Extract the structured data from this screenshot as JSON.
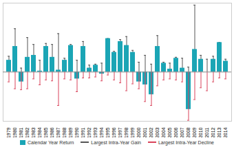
{
  "chart_data": {
    "type": "bar",
    "categories": [
      "1979",
      "1980",
      "1981",
      "1982",
      "1983",
      "1984",
      "1985",
      "1986",
      "1987",
      "1988",
      "1989",
      "1990",
      "1991",
      "1992",
      "1993",
      "1994",
      "1995",
      "1996",
      "1997",
      "1998",
      "1999",
      "2000",
      "2001",
      "2002",
      "2003",
      "2004",
      "2005",
      "2006",
      "2007",
      "2008",
      "2009",
      "2010",
      "2011",
      "2012",
      "2013",
      "2014"
    ],
    "series": [
      {
        "name": "Calendar Year Return",
        "type": "bar",
        "color": "#1ba5b5",
        "values": [
          12,
          26,
          -10,
          15,
          17,
          1,
          26,
          15,
          2,
          12,
          27,
          -7,
          26,
          4,
          7,
          -2,
          34,
          20,
          31,
          27,
          20,
          -10,
          -13,
          -23,
          26,
          9,
          3,
          14,
          4,
          -38,
          23,
          13,
          0,
          13,
          30,
          11
        ]
      },
      {
        "name": "Largest Intra-Year Gain",
        "type": "errorbar",
        "color": "#555555",
        "values": [
          16,
          44,
          4,
          35,
          28,
          12,
          29,
          28,
          39,
          14,
          28,
          12,
          31,
          7,
          8,
          9,
          34,
          21,
          33,
          36,
          22,
          10,
          17,
          8,
          37,
          10,
          9,
          15,
          14,
          5,
          68,
          17,
          13,
          16,
          30,
          13
        ]
      },
      {
        "name": "Largest Intra-Year Decline",
        "type": "errorbar",
        "color": "#d9435a",
        "values": [
          -10,
          -17,
          -18,
          -17,
          -7,
          -13,
          -8,
          -9,
          -34,
          -7,
          -8,
          -20,
          -6,
          -6,
          -5,
          -9,
          -3,
          -8,
          -11,
          -19,
          -12,
          -17,
          -30,
          -34,
          -14,
          -8,
          -7,
          -8,
          -10,
          -49,
          -28,
          -16,
          -19,
          -10,
          -6,
          -7
        ]
      }
    ],
    "ylim": [
      -50,
      70
    ],
    "yticks": [
      0
    ],
    "tick_labels": "x",
    "legend": "bottom"
  }
}
